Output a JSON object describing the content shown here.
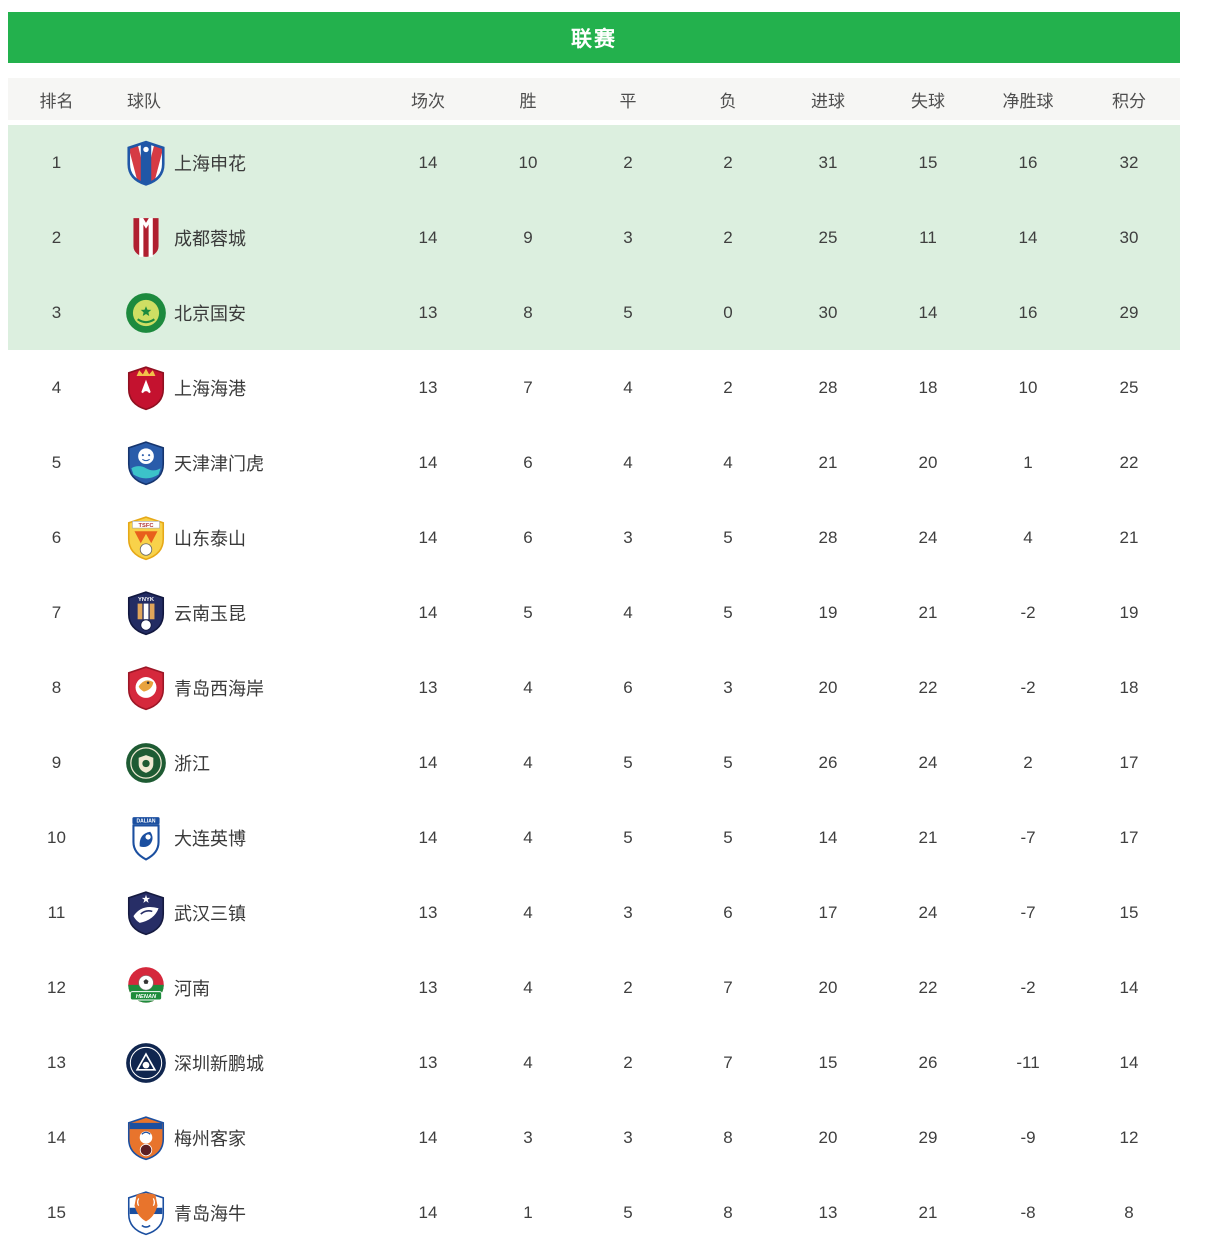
{
  "title": "联赛",
  "colors": {
    "title_bar_green": "#23b14d",
    "highlight_row_green": "#dcefdf",
    "header_row_bg": "#f6f6f4",
    "text": "#3f3f3f"
  },
  "table": {
    "columns": [
      "排名",
      "球队",
      "场次",
      "胜",
      "平",
      "负",
      "进球",
      "失球",
      "净胜球",
      "积分"
    ],
    "rows": [
      {
        "rank": "1",
        "team": "上海申花",
        "highlight": true,
        "logo": {
          "kind": "shenhua",
          "colors": [
            "#2057a7",
            "#ffffff",
            "#d63b44"
          ],
          "text": ""
        },
        "played": "14",
        "win": "10",
        "draw": "2",
        "loss": "2",
        "gf": "31",
        "ga": "15",
        "gd": "16",
        "pts": "32"
      },
      {
        "rank": "2",
        "team": "成都蓉城",
        "highlight": true,
        "logo": {
          "kind": "chengdu",
          "colors": [
            "#b01f30"
          ],
          "text": ""
        },
        "played": "14",
        "win": "9",
        "draw": "3",
        "loss": "2",
        "gf": "25",
        "ga": "11",
        "gd": "14",
        "pts": "30"
      },
      {
        "rank": "3",
        "team": "北京国安",
        "highlight": true,
        "logo": {
          "kind": "guoan",
          "colors": [
            "#1d8a3e",
            "#cede63"
          ],
          "text": ""
        },
        "played": "13",
        "win": "8",
        "draw": "5",
        "loss": "0",
        "gf": "30",
        "ga": "14",
        "gd": "16",
        "pts": "29"
      },
      {
        "rank": "4",
        "team": "上海海港",
        "highlight": false,
        "logo": {
          "kind": "haigang",
          "colors": [
            "#c4122f",
            "#f2c14a"
          ],
          "text": ""
        },
        "played": "13",
        "win": "7",
        "draw": "4",
        "loss": "2",
        "gf": "28",
        "ga": "18",
        "gd": "10",
        "pts": "25"
      },
      {
        "rank": "5",
        "team": "天津津门虎",
        "highlight": false,
        "logo": {
          "kind": "tianjin",
          "colors": [
            "#2a5caa",
            "#ffffff",
            "#3cc3c9"
          ],
          "text": ""
        },
        "played": "14",
        "win": "6",
        "draw": "4",
        "loss": "4",
        "gf": "21",
        "ga": "20",
        "gd": "1",
        "pts": "22"
      },
      {
        "rank": "6",
        "team": "山东泰山",
        "highlight": false,
        "logo": {
          "kind": "shandong",
          "colors": [
            "#e8601c",
            "#f8d24a",
            "#e6a817"
          ],
          "text": "TSFC"
        },
        "played": "14",
        "win": "6",
        "draw": "3",
        "loss": "5",
        "gf": "28",
        "ga": "24",
        "gd": "4",
        "pts": "21"
      },
      {
        "rank": "7",
        "team": "云南玉昆",
        "highlight": false,
        "logo": {
          "kind": "yunnan",
          "colors": [
            "#232c63",
            "#e0a55a"
          ],
          "text": "YNYK"
        },
        "played": "14",
        "win": "5",
        "draw": "4",
        "loss": "5",
        "gf": "19",
        "ga": "21",
        "gd": "-2",
        "pts": "19"
      },
      {
        "rank": "8",
        "team": "青岛西海岸",
        "highlight": false,
        "logo": {
          "kind": "qingdaoxi",
          "colors": [
            "#d5283c",
            "#e8a33d"
          ],
          "text": ""
        },
        "played": "13",
        "win": "4",
        "draw": "6",
        "loss": "3",
        "gf": "20",
        "ga": "22",
        "gd": "-2",
        "pts": "18"
      },
      {
        "rank": "9",
        "team": "浙江",
        "highlight": false,
        "logo": {
          "kind": "zhejiang",
          "colors": [
            "#1e5b33",
            "#efe9d2"
          ],
          "text": ""
        },
        "played": "14",
        "win": "4",
        "draw": "5",
        "loss": "5",
        "gf": "26",
        "ga": "24",
        "gd": "2",
        "pts": "17"
      },
      {
        "rank": "10",
        "team": "大连英博",
        "highlight": false,
        "logo": {
          "kind": "dalian",
          "colors": [
            "#1b4fa0"
          ],
          "text": "DALIAN"
        },
        "played": "14",
        "win": "4",
        "draw": "5",
        "loss": "5",
        "gf": "14",
        "ga": "21",
        "gd": "-7",
        "pts": "17"
      },
      {
        "rank": "11",
        "team": "武汉三镇",
        "highlight": false,
        "logo": {
          "kind": "wuhan",
          "colors": [
            "#272e66"
          ],
          "text": ""
        },
        "played": "13",
        "win": "4",
        "draw": "3",
        "loss": "6",
        "gf": "17",
        "ga": "24",
        "gd": "-7",
        "pts": "15"
      },
      {
        "rank": "12",
        "team": "河南",
        "highlight": false,
        "logo": {
          "kind": "henan",
          "colors": [
            "#d5283c",
            "#1e8c3c"
          ],
          "text": "HENAN"
        },
        "played": "13",
        "win": "4",
        "draw": "2",
        "loss": "7",
        "gf": "20",
        "ga": "22",
        "gd": "-2",
        "pts": "14"
      },
      {
        "rank": "13",
        "team": "深圳新鹏城",
        "highlight": false,
        "logo": {
          "kind": "shenzhen",
          "colors": [
            "#10264f"
          ],
          "text": ""
        },
        "played": "13",
        "win": "4",
        "draw": "2",
        "loss": "7",
        "gf": "15",
        "ga": "26",
        "gd": "-11",
        "pts": "14"
      },
      {
        "rank": "14",
        "team": "梅州客家",
        "highlight": false,
        "logo": {
          "kind": "meizhou",
          "colors": [
            "#e8742c",
            "#1b4fa0"
          ],
          "text": ""
        },
        "played": "14",
        "win": "3",
        "draw": "3",
        "loss": "8",
        "gf": "20",
        "ga": "29",
        "gd": "-9",
        "pts": "12"
      },
      {
        "rank": "15",
        "team": "青岛海牛",
        "highlight": false,
        "logo": {
          "kind": "hainiu",
          "colors": [
            "#e8742c",
            "#1b4fa0"
          ],
          "text": ""
        },
        "played": "14",
        "win": "1",
        "draw": "5",
        "loss": "8",
        "gf": "13",
        "ga": "21",
        "gd": "-8",
        "pts": "8"
      }
    ]
  }
}
